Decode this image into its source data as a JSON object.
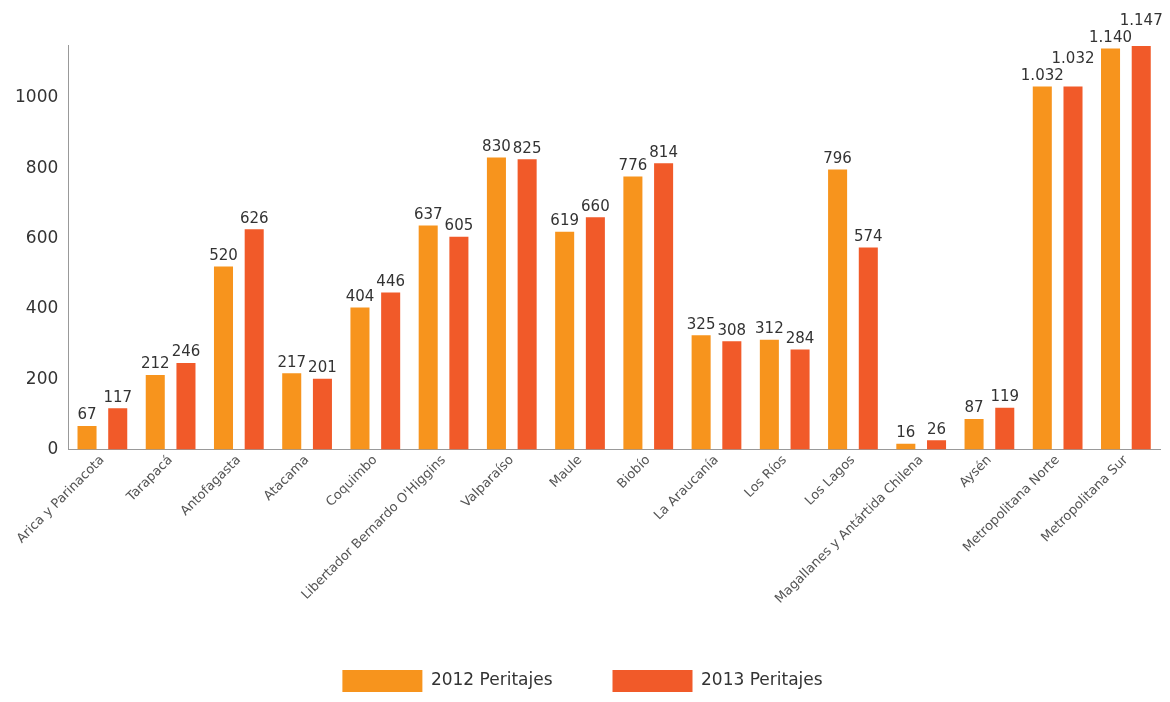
{
  "chart_data": {
    "type": "bar",
    "categories": [
      "Arica y Parinacota",
      "Tarapacá",
      "Antofagasta",
      "Atacama",
      "Coquimbo",
      "Libertador Bernardo O'Higgins",
      "Valparaíso",
      "Maule",
      "Biobío",
      "La Araucanía",
      "Los Ríos",
      "Los Lagos",
      "Magallanes y Antártida Chilena",
      "Aysén",
      "Metropolitana Norte",
      "Metropolitana Sur"
    ],
    "series": [
      {
        "name": "2012 Peritajes",
        "color": "#f7941d",
        "values": [
          67,
          212,
          520,
          217,
          404,
          637,
          830,
          619,
          776,
          325,
          312,
          796,
          16,
          87,
          1032,
          1140
        ],
        "value_labels": [
          "67",
          "212",
          "520",
          "217",
          "404",
          "637",
          "830",
          "619",
          "776",
          "325",
          "312",
          "796",
          "16",
          "87",
          "1.032",
          "1.140"
        ]
      },
      {
        "name": "2013 Peritajes",
        "color": "#f15a29",
        "values": [
          117,
          246,
          626,
          201,
          446,
          605,
          825,
          660,
          814,
          308,
          284,
          574,
          26,
          119,
          1032,
          1147
        ],
        "value_labels": [
          "117",
          "246",
          "626",
          "201",
          "446",
          "605",
          "825",
          "660",
          "814",
          "308",
          "284",
          "574",
          "26",
          "119",
          "1.032",
          "1.147"
        ]
      }
    ],
    "ylim": [
      0,
      1150
    ],
    "yticks": [
      0,
      200,
      400,
      600,
      800,
      1000
    ],
    "grid": false,
    "legend": "bottom"
  }
}
